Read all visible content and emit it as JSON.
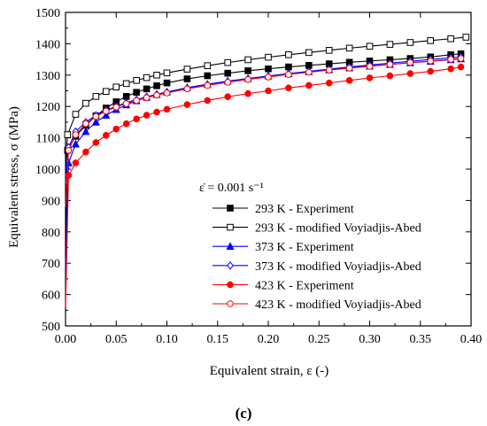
{
  "panel_label": "(c)",
  "chart_data": {
    "type": "line",
    "xlabel": "Equivalent strain, ε (-)",
    "ylabel": "Equivalent stress, σ (MPa)",
    "xlim": [
      0.0,
      0.4
    ],
    "ylim": [
      500,
      1500
    ],
    "xticks": [
      "0.00",
      "0.05",
      "0.10",
      "0.15",
      "0.20",
      "0.25",
      "0.30",
      "0.35",
      "0.40"
    ],
    "yticks": [
      "500",
      "600",
      "700",
      "800",
      "900",
      "1000",
      "1100",
      "1200",
      "1300",
      "1400",
      "1500"
    ],
    "grid": false,
    "legend_placement": "center-right",
    "legend_title": "ε̇ = 0.001 s⁻¹",
    "series": [
      {
        "name": "293 K - Experiment",
        "color": "#000000",
        "marker": "square-filled",
        "x": [
          0,
          0.002,
          0.01,
          0.02,
          0.03,
          0.04,
          0.05,
          0.06,
          0.07,
          0.08,
          0.09,
          0.1,
          0.12,
          0.14,
          0.16,
          0.18,
          0.2,
          0.22,
          0.24,
          0.26,
          0.28,
          0.3,
          0.32,
          0.34,
          0.36,
          0.38,
          0.39
        ],
        "y": [
          730,
          1060,
          1105,
          1140,
          1170,
          1195,
          1215,
          1232,
          1245,
          1256,
          1266,
          1275,
          1288,
          1298,
          1306,
          1314,
          1320,
          1326,
          1331,
          1336,
          1341,
          1345,
          1349,
          1353,
          1358,
          1365,
          1368
        ]
      },
      {
        "name": "293 K - modified Voyiadjis-Abed",
        "color": "#000000",
        "marker": "square-open",
        "x": [
          0,
          0.002,
          0.01,
          0.02,
          0.03,
          0.04,
          0.05,
          0.06,
          0.07,
          0.08,
          0.09,
          0.1,
          0.12,
          0.14,
          0.16,
          0.18,
          0.2,
          0.22,
          0.24,
          0.26,
          0.28,
          0.3,
          0.32,
          0.34,
          0.36,
          0.38,
          0.395
        ],
        "y": [
          1000,
          1110,
          1175,
          1210,
          1232,
          1248,
          1262,
          1273,
          1283,
          1292,
          1300,
          1307,
          1319,
          1330,
          1340,
          1349,
          1357,
          1365,
          1372,
          1379,
          1386,
          1392,
          1398,
          1404,
          1410,
          1416,
          1421
        ]
      },
      {
        "name": "373 K - Experiment",
        "color": "#0000ff",
        "marker": "triangle-filled",
        "x": [
          0,
          0.003,
          0.01,
          0.02,
          0.03,
          0.04,
          0.05,
          0.06,
          0.07,
          0.08,
          0.09,
          0.1,
          0.12,
          0.14,
          0.16,
          0.18,
          0.2,
          0.22,
          0.24,
          0.26,
          0.28,
          0.3,
          0.32,
          0.34,
          0.36,
          0.38,
          0.39
        ],
        "y": [
          680,
          1020,
          1080,
          1120,
          1150,
          1172,
          1190,
          1205,
          1218,
          1229,
          1238,
          1246,
          1260,
          1271,
          1281,
          1289,
          1297,
          1304,
          1311,
          1317,
          1323,
          1329,
          1334,
          1339,
          1344,
          1349,
          1352
        ]
      },
      {
        "name": "373 K - modified Voyiadjis-Abed",
        "color": "#0000ff",
        "marker": "diamond-open",
        "x": [
          0,
          0.003,
          0.01,
          0.02,
          0.03,
          0.04,
          0.05,
          0.06,
          0.07,
          0.08,
          0.09,
          0.1,
          0.12,
          0.14,
          0.16,
          0.18,
          0.2,
          0.22,
          0.24,
          0.26,
          0.28,
          0.3,
          0.32,
          0.34,
          0.36,
          0.38,
          0.39
        ],
        "y": [
          960,
          1070,
          1120,
          1150,
          1172,
          1188,
          1201,
          1212,
          1222,
          1231,
          1239,
          1246,
          1259,
          1270,
          1280,
          1289,
          1297,
          1305,
          1312,
          1319,
          1326,
          1332,
          1338,
          1344,
          1350,
          1355,
          1358
        ]
      },
      {
        "name": "423 K - Experiment",
        "color": "#ff0000",
        "marker": "circle-filled",
        "x": [
          0,
          0.003,
          0.01,
          0.02,
          0.03,
          0.04,
          0.05,
          0.06,
          0.07,
          0.08,
          0.09,
          0.1,
          0.12,
          0.14,
          0.16,
          0.18,
          0.2,
          0.22,
          0.24,
          0.26,
          0.28,
          0.3,
          0.32,
          0.34,
          0.36,
          0.38,
          0.39
        ],
        "y": [
          560,
          980,
          1020,
          1055,
          1085,
          1108,
          1128,
          1145,
          1160,
          1172,
          1182,
          1191,
          1206,
          1219,
          1231,
          1241,
          1250,
          1259,
          1267,
          1275,
          1283,
          1291,
          1298,
          1305,
          1312,
          1320,
          1326
        ]
      },
      {
        "name": "423 K - modified Voyiadjis-Abed",
        "color": "#ff0000",
        "marker": "circle-open",
        "x": [
          0,
          0.003,
          0.01,
          0.02,
          0.03,
          0.04,
          0.05,
          0.06,
          0.07,
          0.08,
          0.09,
          0.1,
          0.12,
          0.14,
          0.16,
          0.18,
          0.2,
          0.22,
          0.24,
          0.26,
          0.28,
          0.3,
          0.32,
          0.34,
          0.36,
          0.38,
          0.39
        ],
        "y": [
          880,
          1060,
          1110,
          1145,
          1168,
          1185,
          1198,
          1209,
          1219,
          1228,
          1236,
          1243,
          1256,
          1267,
          1277,
          1286,
          1294,
          1302,
          1309,
          1316,
          1322,
          1328,
          1334,
          1340,
          1345,
          1350,
          1353
        ]
      }
    ]
  }
}
